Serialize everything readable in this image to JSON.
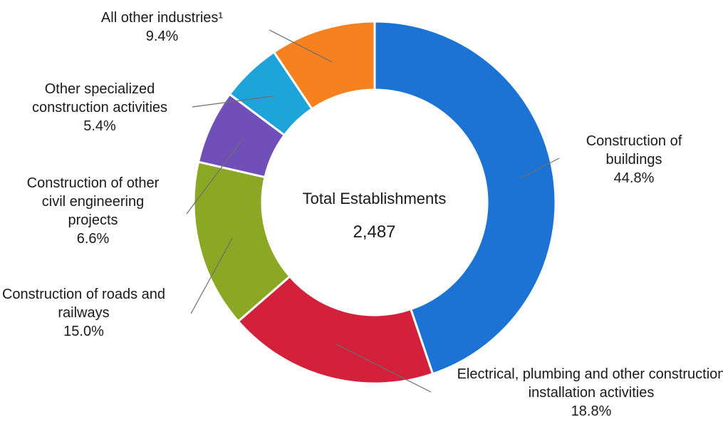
{
  "chart_data": {
    "type": "pie",
    "center_title": "Total Establishments",
    "center_value": "2,487",
    "slices": [
      {
        "name": "Construction of buildings",
        "value": 44.8,
        "value_label": "44.8%",
        "color": "#1c73d4"
      },
      {
        "name": "Electrical, plumbing and other construction installation activities",
        "value": 18.8,
        "value_label": "18.8%",
        "color": "#d3213b"
      },
      {
        "name": "Construction of roads and railways",
        "value": 15.0,
        "value_label": "15.0%",
        "color": "#8ba824"
      },
      {
        "name": "Construction of other civil engineering projects",
        "value": 6.6,
        "value_label": "6.6%",
        "color": "#7050b8"
      },
      {
        "name": "Other specialized construction activities",
        "value": 5.4,
        "value_label": "5.4%",
        "color": "#1ea4d8"
      },
      {
        "name": "All other industries¹",
        "value": 9.4,
        "value_label": "9.4%",
        "color": "#f5821f"
      }
    ]
  }
}
